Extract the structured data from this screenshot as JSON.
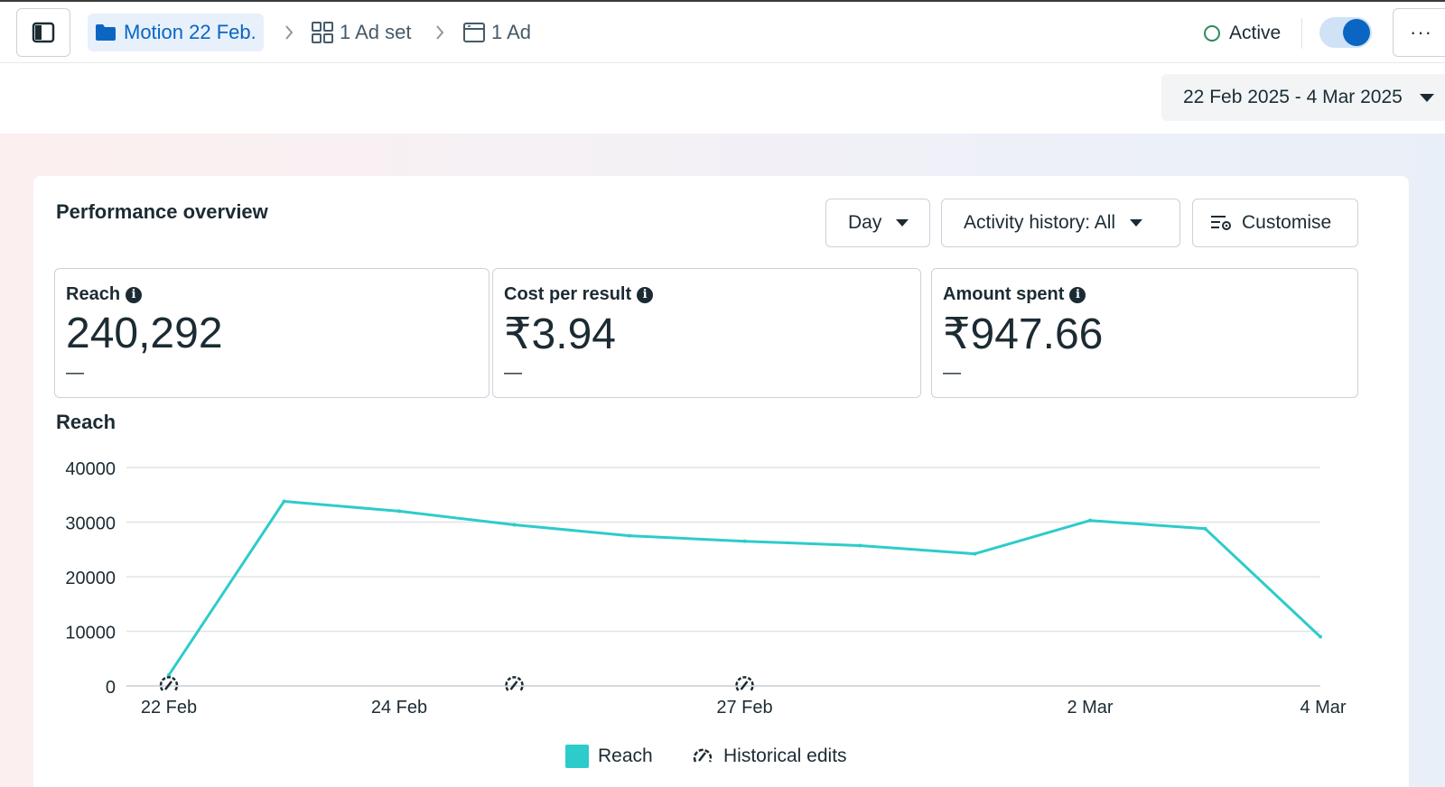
{
  "breadcrumb": {
    "campaign": "Motion 22 Feb.",
    "ad_set": "1 Ad set",
    "ad": "1 Ad"
  },
  "status": {
    "label": "Active",
    "toggle_on": true
  },
  "more_label": "···",
  "date_range": "22 Feb 2025 - 4 Mar 2025",
  "colors": {
    "accent": "#0a66c2",
    "series": "#2ecbcb",
    "active": "#2e8a5b"
  },
  "overview": {
    "title": "Performance overview",
    "controls": {
      "granularity": "Day",
      "activity": "Activity history: All",
      "customise": "Customise"
    },
    "metrics": [
      {
        "label": "Reach",
        "value": "240,292",
        "delta": "—"
      },
      {
        "label": "Cost per result",
        "value": "₹3.94",
        "delta": "—"
      },
      {
        "label": "Amount spent",
        "value": "₹947.66",
        "delta": "—"
      }
    ],
    "chart_title": "Reach",
    "legend": {
      "series": "Reach",
      "edits": "Historical edits"
    }
  },
  "chart_data": {
    "type": "line",
    "title": "Reach",
    "x": [
      "22 Feb",
      "23 Feb",
      "24 Feb",
      "25 Feb",
      "26 Feb",
      "27 Feb",
      "28 Feb",
      "1 Mar",
      "2 Mar",
      "3 Mar",
      "4 Mar"
    ],
    "x_tick_labels": [
      "22 Feb",
      "24 Feb",
      "27 Feb",
      "2 Mar",
      "4 Mar"
    ],
    "y_ticks": [
      0,
      10000,
      20000,
      30000,
      40000
    ],
    "ylim": [
      0,
      40000
    ],
    "grid": true,
    "legend_position": "bottom",
    "series": [
      {
        "name": "Reach",
        "values": [
          2000,
          33800,
          32000,
          29500,
          27500,
          26500,
          25700,
          24200,
          30300,
          28800,
          9000
        ]
      }
    ],
    "historical_edits_at": [
      "22 Feb",
      "25 Feb",
      "27 Feb"
    ]
  }
}
